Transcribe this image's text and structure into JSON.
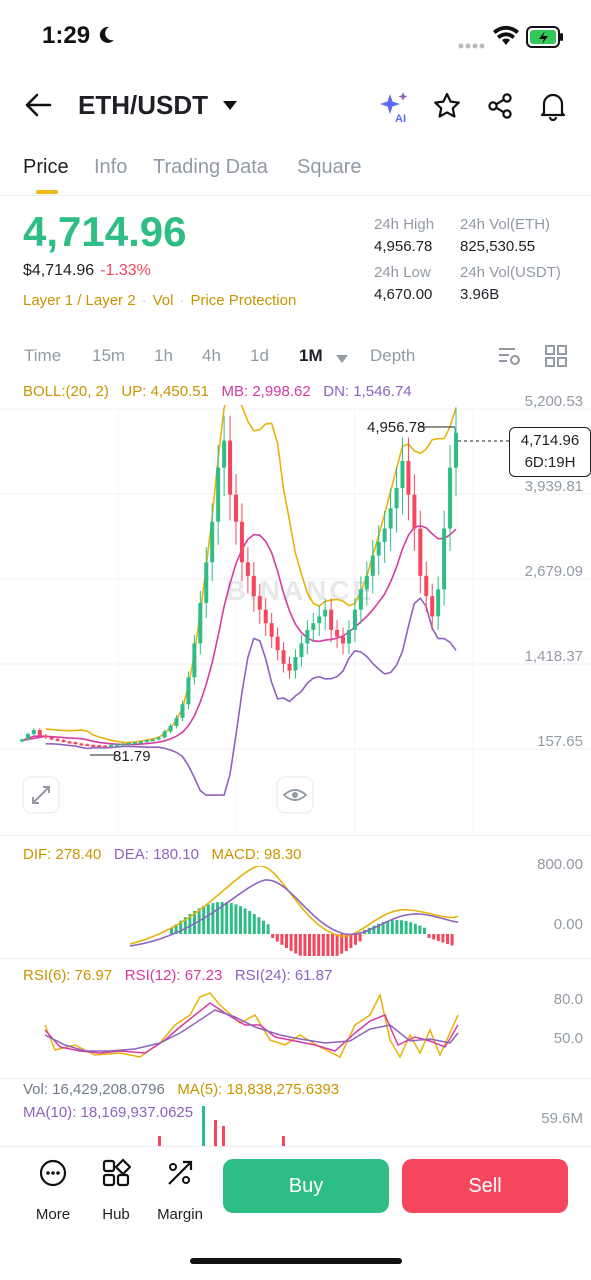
{
  "status_bar": {
    "time": "1:29"
  },
  "header": {
    "pair": "ETH/USDT",
    "ai_label": "AI"
  },
  "tabs": [
    {
      "label": "Price",
      "active": true
    },
    {
      "label": "Info"
    },
    {
      "label": "Trading Data"
    },
    {
      "label": "Square"
    }
  ],
  "price": {
    "last": "4,714.96",
    "usd": "$4,714.96",
    "change": "-1.33%",
    "tags": [
      "Layer 1 / Layer 2",
      "Vol",
      "Price Protection"
    ]
  },
  "stats": {
    "high_label": "24h High",
    "high": "4,956.78",
    "vol_eth_label": "24h Vol(ETH)",
    "vol_eth": "825,530.55",
    "low_label": "24h Low",
    "low": "4,670.00",
    "vol_usdt_label": "24h Vol(USDT)",
    "vol_usdt": "3.96B"
  },
  "intervals": [
    "Time",
    "15m",
    "1h",
    "4h",
    "1d",
    "1M",
    "Depth"
  ],
  "active_interval": "1M",
  "boll": {
    "label": "BOLL:(20, 2)",
    "up": "UP: 4,450.51",
    "mb": "MB: 2,998.62",
    "dn": "DN: 1,546.74"
  },
  "price_axis": [
    "5,200.53",
    "3,939.81",
    "2,679.09",
    "1,418.37",
    "157.65"
  ],
  "chart_markers": {
    "max": "4,956.78",
    "min": "81.79"
  },
  "current_tag": {
    "price": "4,714.96",
    "countdown": "6D:19H"
  },
  "watermark": "BINANCE",
  "macd": {
    "dif": "DIF: 278.40",
    "dea": "DEA: 180.10",
    "macd": "MACD: 98.30",
    "axis": [
      "800.00",
      "0.00"
    ]
  },
  "rsi": {
    "r6": "RSI(6): 76.97",
    "r12": "RSI(12): 67.23",
    "r24": "RSI(24): 61.87",
    "axis": [
      "80.0",
      "50.0"
    ]
  },
  "vol": {
    "vol": "Vol: 16,429,208.0796",
    "ma5": "MA(5): 18,838,275.6393",
    "ma10": "MA(10): 18,169,937.0625",
    "axis": "59.6M"
  },
  "bottom_nav": [
    "More",
    "Hub",
    "Margin"
  ],
  "buttons": {
    "buy": "Buy",
    "sell": "Sell"
  },
  "colors": {
    "up": "#2ebd85",
    "down": "#f6465d",
    "boll_up": "#e9b209",
    "boll_mb": "#d63aa3",
    "boll_dn": "#8e62bd",
    "accent": "#f0b90b"
  },
  "chart_data": {
    "type": "candlestick",
    "series_close": [
      150,
      180,
      260,
      320,
      240,
      210,
      190,
      170,
      150,
      140,
      120,
      110,
      100,
      95,
      90,
      85,
      100,
      110,
      120,
      130,
      140,
      150,
      170,
      180,
      210,
      300,
      380,
      500,
      700,
      1100,
      1600,
      2200,
      2800,
      3400,
      4200,
      4600,
      3800,
      3400,
      2800,
      2600,
      2300,
      2100,
      1900,
      1700,
      1500,
      1300,
      1200,
      1400,
      1600,
      1800,
      1900,
      2000,
      2100,
      1800,
      1700,
      1600,
      1800,
      2100,
      2400,
      2600,
      2900,
      3100,
      3300,
      3600,
      3900,
      4300,
      3800,
      3300,
      2600,
      2300,
      2000,
      2400,
      3300,
      4200,
      4714.96
    ]
  }
}
